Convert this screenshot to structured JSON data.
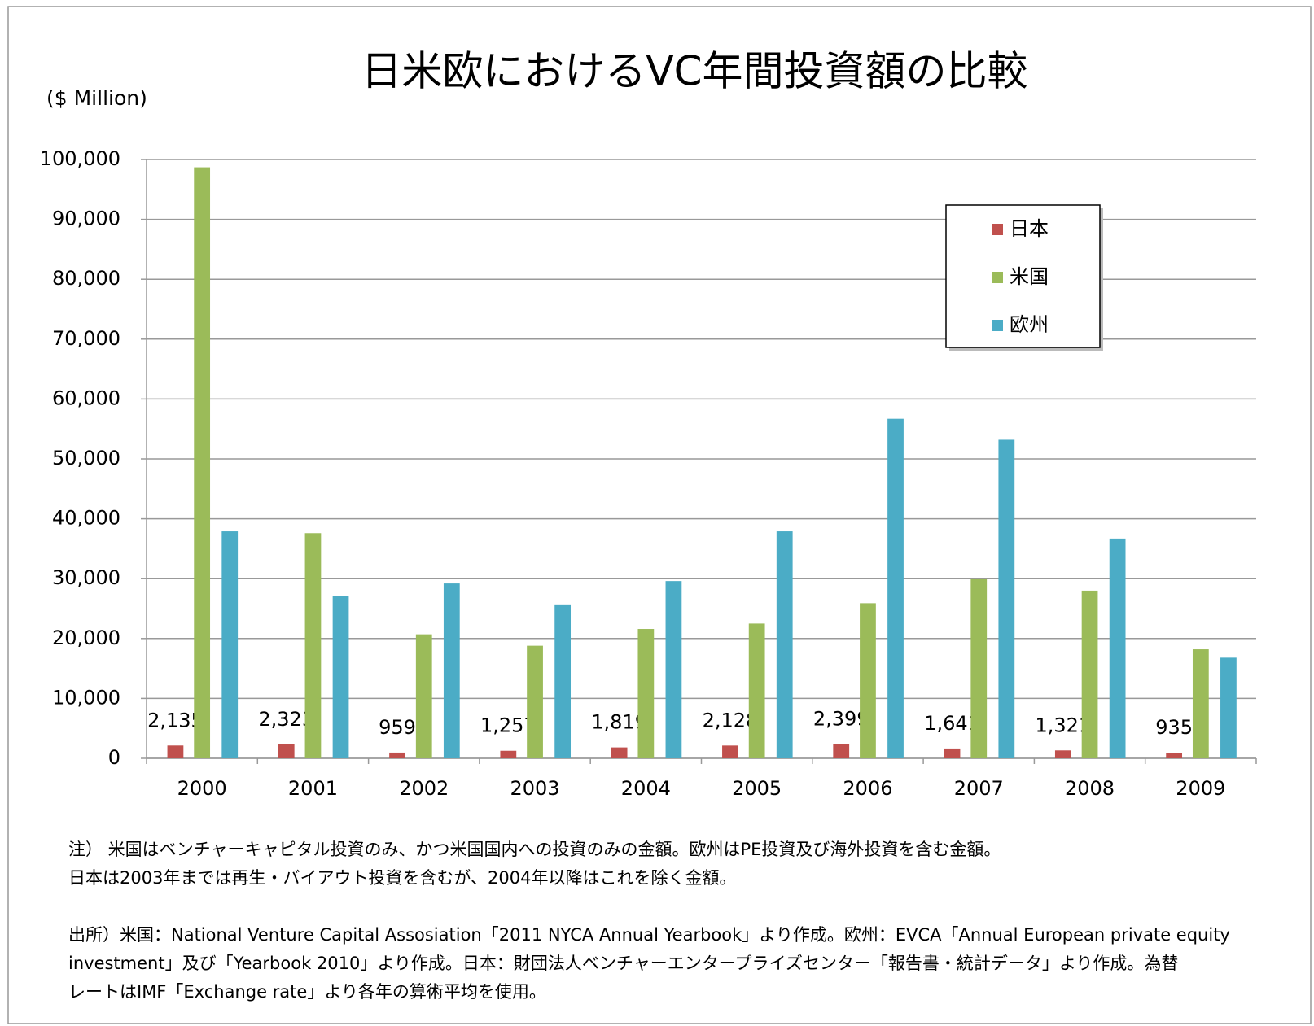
{
  "chart_data": {
    "type": "bar",
    "title": "日米欧におけるVC年間投資額の比較",
    "y_axis_label": "($ Million)",
    "categories": [
      "2000",
      "2001",
      "2002",
      "2003",
      "2004",
      "2005",
      "2006",
      "2007",
      "2008",
      "2009"
    ],
    "series": [
      {
        "name": "日本",
        "color": "#c0504d",
        "values": [
          2135,
          2323,
          959,
          1257,
          1819,
          2128,
          2399,
          1641,
          1321,
          935
        ],
        "value_labels": [
          "2,135",
          "2,323",
          "959",
          "1,257",
          "1,819",
          "2,128",
          "2,399",
          "1,641",
          "1,321",
          "935"
        ]
      },
      {
        "name": "米国",
        "color": "#9bbb59",
        "values": [
          98700,
          37600,
          20700,
          18800,
          21600,
          22500,
          25900,
          29900,
          28000,
          18200
        ]
      },
      {
        "name": "欧州",
        "color": "#4bacc6",
        "values": [
          37900,
          27100,
          29200,
          25700,
          29600,
          37900,
          56700,
          53200,
          36700,
          16800
        ]
      }
    ],
    "ylim": [
      0,
      100000
    ],
    "yticks": [
      0,
      {
        "value": 10000,
        "label": "10,000"
      },
      {
        "value": 20000,
        "label": "20,000"
      },
      {
        "value": 30000,
        "label": "30,000"
      },
      {
        "value": 40000,
        "label": "40,000"
      },
      {
        "value": 50000,
        "label": "50,000"
      },
      {
        "value": 60000,
        "label": "60,000"
      },
      {
        "value": 70000,
        "label": "70,000"
      },
      {
        "value": 80000,
        "label": "80,000"
      },
      {
        "value": 90000,
        "label": "90,000"
      },
      {
        "value": 100000,
        "label": "100,000"
      }
    ],
    "grid": true,
    "legend": "top-right",
    "notes": [
      "注） 米国はベンチャーキャピタル投資のみ、かつ米国国内への投資のみの金額。欧州はPE投資及び海外投資を含む金額。",
      "日本は2003年までは再生・バイアウト投資を含むが、2004年以降はこれを除く金額。"
    ],
    "source": [
      "出所）米国：National Venture Capital Assosiation「2011 NYCA Annual Yearbook」より作成。欧州：EVCA「Annual European private equity",
      "investment」及び「Yearbook 2010」より作成。日本：財団法人ベンチャーエンタープライズセンター「報告書・統計データ」より作成。為替",
      "レートはIMF「Exchange rate」より各年の算術平均を使用。"
    ]
  }
}
